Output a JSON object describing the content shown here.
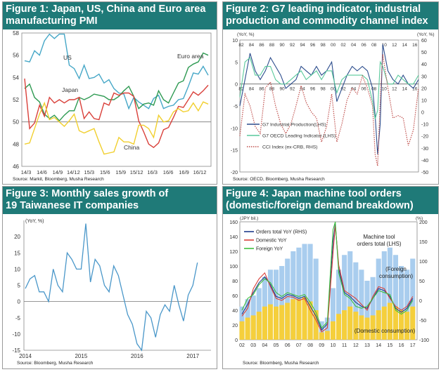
{
  "figures": [
    {
      "title_line1": "Figure 1: Japan, US, China and Euro area",
      "title_line2": "manufacturing PMI",
      "source": "Source: Markit, Bloomberg, Musha Research"
    },
    {
      "title_line1": "Figure 2: G7 leading indicator, industrial",
      "title_line2": "production and commodity channel index",
      "source": "Source: OECD, Bloomberg, Musha Research"
    },
    {
      "title_line1": "Figure 3: Monthly sales growth of",
      "title_line2": "19 Taiwanese IT companies",
      "source": "Source: Bloomberg, Musha Research"
    },
    {
      "title_line1": "Figure 4: Japan machine tool orders",
      "title_line2": "(domestic/foreign demand breakdown)",
      "source": "Source: Bloomberg, Musha Research"
    }
  ],
  "chart_data": [
    {
      "type": "line",
      "title": "Figure 1: Japan, US, China and Euro area manufacturing PMI",
      "x_ticks": [
        "14/3",
        "14/6",
        "14/9",
        "14/12",
        "15/3",
        "15/6",
        "15/9",
        "15/12",
        "16/3",
        "16/6",
        "16/9",
        "16/12"
      ],
      "ylim": [
        46,
        58
      ],
      "y_ticks": [
        46,
        48,
        50,
        52,
        54,
        56,
        58
      ],
      "reference_line": 50,
      "labels": {
        "us": "US",
        "euro": "Euro area",
        "japan": "Japan",
        "china": "China"
      },
      "colors": {
        "US": "#46a7c7",
        "Euro area": "#2e9a52",
        "Japan": "#d9403a",
        "China": "#f1cf2e"
      },
      "series": [
        {
          "name": "US",
          "values": [
            55.5,
            55.4,
            56.4,
            56.0,
            57.3,
            57.9,
            57.5,
            57.9,
            57.9,
            55.1,
            54.8,
            53.9,
            55.1,
            53.9,
            54.0,
            54.3,
            53.5,
            53.8,
            53.0,
            52.6,
            52.5,
            51.2,
            52.2,
            51.8,
            51.5,
            51.2,
            52.1,
            52.4,
            51.2,
            51.4,
            51.5,
            52.0,
            52.1,
            53.2,
            54.4,
            54.3,
            55.0,
            54.2
          ]
        },
        {
          "name": "Euro area",
          "values": [
            53.0,
            53.4,
            52.2,
            51.8,
            50.7,
            50.3,
            50.6,
            50.1,
            50.6,
            51.0,
            51.0,
            52.2,
            52.0,
            52.2,
            52.5,
            52.4,
            52.3,
            52.0,
            52.0,
            52.3,
            52.8,
            53.2,
            52.3,
            51.2,
            51.6,
            51.7,
            51.5,
            52.8,
            52.0,
            51.7,
            52.6,
            53.5,
            53.7,
            54.9,
            55.2,
            55.4,
            56.2,
            56.0
          ]
        },
        {
          "name": "Japan",
          "values": [
            53.9,
            49.4,
            49.9,
            51.5,
            50.5,
            52.2,
            51.7,
            52.0,
            51.7,
            52.0,
            52.0,
            52.2,
            50.3,
            50.9,
            50.3,
            50.2,
            51.7,
            51.5,
            52.6,
            52.4,
            52.6,
            52.6,
            52.3,
            50.1,
            49.1,
            48.0,
            47.7,
            48.1,
            49.3,
            49.5,
            50.4,
            51.4,
            51.3,
            52.0,
            52.7,
            52.4,
            52.8,
            53.3
          ]
        },
        {
          "name": "China",
          "values": [
            48.0,
            48.1,
            49.4,
            50.7,
            51.7,
            50.2,
            50.4,
            50.0,
            49.6,
            50.1,
            50.7,
            49.2,
            49.0,
            49.2,
            49.4,
            48.2,
            47.1,
            47.2,
            47.3,
            48.6,
            48.2,
            48.2,
            48.0,
            49.7,
            49.7,
            49.4,
            48.6,
            50.6,
            50.0,
            50.1,
            50.9,
            51.2,
            50.9,
            51.0,
            51.7,
            51.0,
            51.8,
            51.6
          ]
        }
      ]
    },
    {
      "type": "line",
      "title": "Figure 2: G7 leading indicator, industrial production and commodity channel index",
      "x_ticks": [
        "82",
        "84",
        "86",
        "88",
        "90",
        "92",
        "94",
        "96",
        "98",
        "00",
        "02",
        "04",
        "06",
        "08",
        "10",
        "12",
        "14",
        "16"
      ],
      "x_range": [
        1982,
        2017
      ],
      "left_axis_label": "(YoY, %)",
      "right_axis_label": "(YoY, %)",
      "left_ylim": [
        -20,
        10
      ],
      "left_y_ticks": [
        -20,
        -15,
        -10,
        -5,
        0,
        5,
        10
      ],
      "right_ylim": [
        -50,
        60
      ],
      "right_y_ticks": [
        -50,
        -40,
        -30,
        -20,
        -10,
        0,
        10,
        20,
        30,
        40,
        50,
        60
      ],
      "legend_placement": "lower-left",
      "series": [
        {
          "name": "G7 Industrial Production(LHS)",
          "axis": "left",
          "color": "#2b4c8c",
          "dash": "solid",
          "x": [
            1982,
            1983,
            1984,
            1985,
            1986,
            1987,
            1988,
            1989,
            1990,
            1991,
            1992,
            1993,
            1994,
            1995,
            1996,
            1997,
            1998,
            1999,
            2000,
            2001,
            2002,
            2003,
            2004,
            2005,
            2006,
            2007,
            2008,
            2008.5,
            2009,
            2009.5,
            2010,
            2011,
            2012,
            2013,
            2014,
            2015,
            2016,
            2017
          ],
          "y": [
            -5,
            1,
            7,
            3,
            1,
            3,
            6,
            4,
            2,
            -1,
            0,
            1,
            4,
            3,
            2,
            4,
            2,
            3,
            5,
            -4,
            -1,
            2,
            4,
            3,
            4,
            3,
            -1,
            -7,
            -16,
            -9,
            9,
            3,
            1,
            0,
            2,
            0,
            -1,
            1
          ]
        },
        {
          "name": "G7 OECD Leading Indicator (LHS)",
          "axis": "left",
          "color": "#59c99b",
          "dash": "solid",
          "x": [
            1982,
            1983,
            1984,
            1985,
            1986,
            1987,
            1988,
            1989,
            1990,
            1991,
            1992,
            1993,
            1994,
            1995,
            1996,
            1997,
            1998,
            1999,
            2000,
            2001,
            2002,
            2003,
            2004,
            2005,
            2006,
            2007,
            2008,
            2008.5,
            2009,
            2009.5,
            2010,
            2011,
            2012,
            2013,
            2014,
            2015,
            2016,
            2017
          ],
          "y": [
            -3,
            5,
            6,
            2,
            2,
            4,
            4,
            1,
            0,
            0,
            1,
            2,
            3,
            1,
            2,
            3,
            1,
            3,
            3,
            -2,
            1,
            2,
            2,
            2,
            2,
            1,
            -4,
            -8,
            -6,
            5,
            4,
            0,
            0,
            2,
            1,
            0,
            0,
            2
          ]
        },
        {
          "name": "CCI Index (ex-CRB, RHS)",
          "axis": "right",
          "color": "#c0504d",
          "dash": "dotted",
          "x": [
            1982,
            1983,
            1984,
            1985,
            1986,
            1987,
            1988,
            1989,
            1990,
            1991,
            1992,
            1993,
            1994,
            1995,
            1996,
            1997,
            1998,
            1999,
            2000,
            2001,
            2002,
            2003,
            2004,
            2005,
            2006,
            2007,
            2008,
            2008.5,
            2009,
            2009.5,
            2010,
            2011,
            2012,
            2013,
            2014,
            2015,
            2016,
            2017
          ],
          "y": [
            -20,
            15,
            5,
            -12,
            -18,
            20,
            25,
            5,
            -10,
            -18,
            -10,
            5,
            22,
            8,
            0,
            -5,
            -25,
            -12,
            15,
            -25,
            -10,
            10,
            20,
            15,
            30,
            20,
            5,
            -35,
            -45,
            10,
            48,
            20,
            -5,
            -3,
            -5,
            -28,
            -15,
            20
          ]
        }
      ]
    },
    {
      "type": "line",
      "title": "Figure 3: Monthly sales growth of 19 Taiwanese IT companies",
      "y_axis_label": "(YoY, %)",
      "x_ticks": [
        "2014",
        "2015",
        "2016",
        "2017"
      ],
      "x_range": [
        2014.0,
        2017.25
      ],
      "ylim": [
        -15,
        25
      ],
      "y_ticks": [
        -15,
        -10,
        -5,
        0,
        5,
        10,
        15,
        20,
        25
      ],
      "color": "#4a97c9",
      "x": [
        2014.0,
        2014.083,
        2014.167,
        2014.25,
        2014.333,
        2014.417,
        2014.5,
        2014.583,
        2014.667,
        2014.75,
        2014.833,
        2014.917,
        2015.0,
        2015.083,
        2015.167,
        2015.25,
        2015.333,
        2015.417,
        2015.5,
        2015.583,
        2015.667,
        2015.75,
        2015.833,
        2015.917,
        2016.0,
        2016.083,
        2016.167,
        2016.25,
        2016.333,
        2016.417,
        2016.5,
        2016.583,
        2016.667,
        2016.75,
        2016.833,
        2016.917,
        2017.0,
        2017.083
      ],
      "values": [
        4,
        7,
        8,
        3,
        3,
        0,
        10,
        5,
        3,
        15,
        13,
        10,
        10,
        24,
        6,
        13,
        11,
        5,
        3,
        11,
        8,
        2,
        -4,
        -7,
        -13,
        -15,
        -3,
        -5,
        -11,
        -4,
        -1,
        -3,
        5,
        -1,
        -6,
        2,
        5,
        12
      ]
    },
    {
      "type": "bar",
      "title": "Figure 4: Japan machine tool orders (domestic/foreign demand breakdown)",
      "left_axis_label": "(JPY bil.)",
      "right_axis_label": "(%)",
      "x_ticks": [
        "02",
        "03",
        "04",
        "05",
        "06",
        "07",
        "08",
        "09",
        "10",
        "11",
        "12",
        "13",
        "14",
        "15",
        "16",
        "17"
      ],
      "x_range": [
        2002,
        2017.2
      ],
      "left_ylim": [
        0,
        160
      ],
      "left_y_ticks": [
        0,
        20,
        40,
        60,
        80,
        100,
        120,
        140,
        160
      ],
      "right_ylim": [
        -100,
        200
      ],
      "right_y_ticks": [
        -100,
        -50,
        0,
        50,
        100,
        150,
        200
      ],
      "annotations": {
        "total": [
          "Machine tool",
          "orders total (LHS)"
        ],
        "foreign": [
          "(Foreign",
          "consumption)"
        ],
        "domestic": "(Domestic consumption)"
      },
      "bars": {
        "x": [
          2002,
          2002.5,
          2003,
          2003.5,
          2004,
          2004.5,
          2005,
          2005.5,
          2006,
          2006.5,
          2007,
          2007.5,
          2008,
          2008.5,
          2009,
          2009.5,
          2010,
          2010.5,
          2011,
          2011.5,
          2012,
          2012.5,
          2013,
          2013.5,
          2014,
          2014.5,
          2015,
          2015.5,
          2016,
          2016.5,
          2017
        ],
        "total": [
          45,
          55,
          60,
          70,
          85,
          95,
          95,
          100,
          110,
          120,
          125,
          130,
          130,
          110,
          25,
          30,
          70,
          95,
          115,
          120,
          105,
          95,
          80,
          85,
          110,
          120,
          125,
          115,
          100,
          95,
          110
        ],
        "domestic": [
          25,
          30,
          33,
          38,
          45,
          48,
          45,
          47,
          50,
          55,
          55,
          58,
          52,
          40,
          10,
          12,
          25,
          35,
          40,
          45,
          38,
          33,
          30,
          33,
          40,
          45,
          50,
          45,
          40,
          38,
          45
        ]
      },
      "series": [
        {
          "name": "Orders total YoY (RHS)",
          "axis": "right",
          "color": "#1e3b8a",
          "x": [
            2002,
            2002.5,
            2003,
            2003.5,
            2004,
            2004.5,
            2005,
            2005.5,
            2006,
            2006.5,
            2007,
            2007.5,
            2008,
            2008.5,
            2009,
            2009.5,
            2010,
            2010.2,
            2010.5,
            2011,
            2011.5,
            2012,
            2012.5,
            2013,
            2013.5,
            2014,
            2014.5,
            2015,
            2015.5,
            2016,
            2016.5,
            2017
          ],
          "y": [
            -35,
            -10,
            20,
            45,
            60,
            40,
            10,
            5,
            15,
            12,
            5,
            10,
            -15,
            -40,
            -75,
            -60,
            150,
            195,
            80,
            20,
            10,
            -5,
            -15,
            -20,
            5,
            30,
            25,
            10,
            -20,
            -30,
            -20,
            5
          ]
        },
        {
          "name": "Domestic YoY",
          "axis": "right",
          "color": "#d9403a",
          "x": [
            2002,
            2002.5,
            2003,
            2003.5,
            2004,
            2004.5,
            2005,
            2005.5,
            2006,
            2006.5,
            2007,
            2007.5,
            2008,
            2008.5,
            2009,
            2009.5,
            2010,
            2010.2,
            2010.5,
            2011,
            2011.5,
            2012,
            2012.5,
            2013,
            2013.5,
            2014,
            2014.5,
            2015,
            2015.5,
            2016,
            2016.5,
            2017
          ],
          "y": [
            -40,
            -20,
            30,
            55,
            70,
            35,
            5,
            0,
            10,
            8,
            0,
            5,
            -25,
            -50,
            -80,
            -70,
            120,
            190,
            90,
            25,
            15,
            5,
            -10,
            -25,
            10,
            35,
            30,
            5,
            -15,
            -25,
            -15,
            10
          ]
        },
        {
          "name": "Foreign YoY",
          "axis": "right",
          "color": "#3fbf3f",
          "x": [
            2002,
            2002.5,
            2003,
            2003.5,
            2004,
            2004.5,
            2005,
            2005.5,
            2006,
            2006.5,
            2007,
            2007.5,
            2008,
            2008.5,
            2009,
            2009.5,
            2010,
            2010.2,
            2010.5,
            2011,
            2011.5,
            2012,
            2012.5,
            2013,
            2013.5,
            2014,
            2014.5,
            2015,
            2015.5,
            2016,
            2016.5,
            2017
          ],
          "y": [
            -25,
            5,
            15,
            40,
            55,
            45,
            20,
            10,
            20,
            15,
            10,
            15,
            -5,
            -30,
            -70,
            -55,
            180,
            200,
            70,
            15,
            5,
            -15,
            -20,
            -15,
            5,
            25,
            20,
            15,
            -25,
            -35,
            -25,
            0
          ]
        }
      ]
    }
  ]
}
